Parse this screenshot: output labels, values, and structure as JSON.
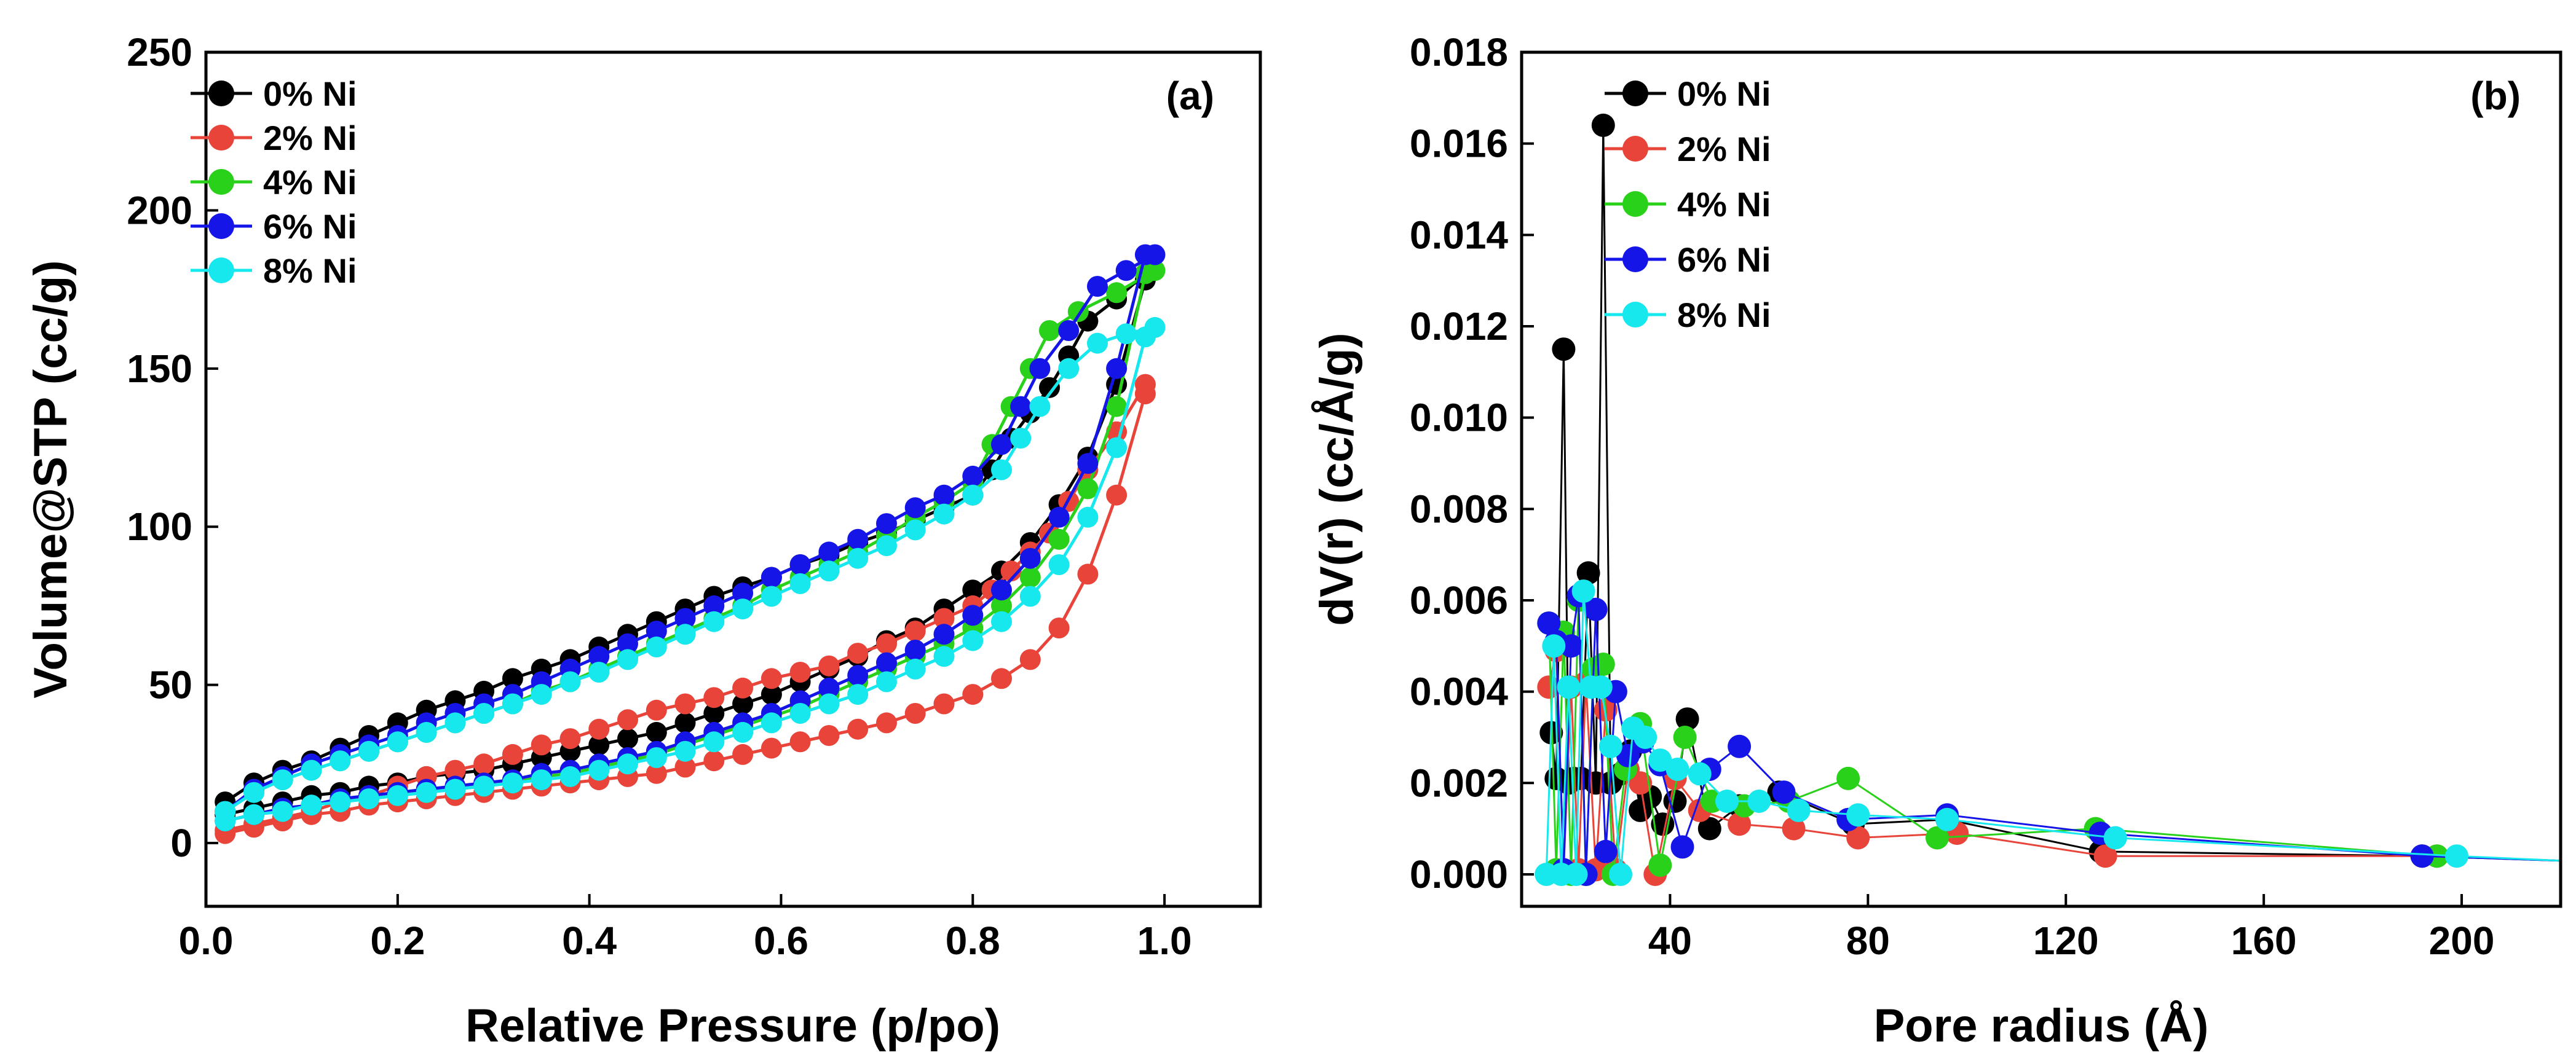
{
  "chart_data": [
    {
      "type": "line",
      "panel_label": "(a)",
      "xlabel": "Relative Pressure (p/po)",
      "ylabel": "Volume@STP (cc/g)",
      "xlim": [
        0.0,
        1.1
      ],
      "ylim": [
        -20,
        250
      ],
      "xticks": [
        0.0,
        0.2,
        0.4,
        0.6,
        0.8,
        1.0
      ],
      "xtick_labels": [
        "0.0",
        "0.2",
        "0.4",
        "0.6",
        "0.8",
        "1.0"
      ],
      "yticks": [
        0,
        50,
        100,
        150,
        200,
        250
      ],
      "ytick_labels": [
        "0",
        "50",
        "100",
        "150",
        "200",
        "250"
      ],
      "legend_position": "top-left",
      "series": [
        {
          "name": "0% Ni",
          "color": "#000000",
          "adsorption_p": [
            0.02,
            0.05,
            0.08,
            0.11,
            0.14,
            0.17,
            0.2,
            0.23,
            0.26,
            0.29,
            0.32,
            0.35,
            0.38,
            0.41,
            0.44,
            0.47,
            0.5,
            0.53,
            0.56,
            0.59,
            0.62,
            0.65,
            0.68,
            0.71,
            0.74,
            0.77,
            0.8,
            0.83,
            0.86,
            0.89,
            0.92,
            0.95,
            0.98
          ],
          "adsorption_v": [
            9,
            11,
            13,
            15,
            16,
            18,
            19,
            21,
            22,
            23,
            25,
            27,
            29,
            31,
            33,
            35,
            38,
            41,
            44,
            47,
            51,
            55,
            59,
            64,
            68,
            74,
            80,
            86,
            95,
            107,
            122,
            145,
            178
          ],
          "desorption_p": [
            0.98,
            0.95,
            0.92,
            0.9,
            0.88,
            0.86,
            0.84,
            0.82,
            0.8,
            0.77,
            0.74,
            0.71,
            0.68,
            0.65,
            0.62,
            0.59,
            0.56,
            0.53,
            0.5,
            0.47,
            0.44,
            0.41,
            0.38,
            0.35,
            0.32,
            0.29,
            0.26,
            0.23,
            0.2,
            0.17,
            0.14,
            0.11,
            0.08,
            0.05,
            0.02
          ],
          "desorption_v": [
            180,
            172,
            165,
            154,
            144,
            136,
            128,
            118,
            110,
            106,
            102,
            98,
            95,
            91,
            88,
            84,
            81,
            78,
            74,
            70,
            66,
            62,
            58,
            55,
            52,
            48,
            45,
            42,
            38,
            34,
            30,
            26,
            23,
            19,
            13
          ]
        },
        {
          "name": "2% Ni",
          "color": "#e8443a",
          "adsorption_p": [
            0.02,
            0.05,
            0.08,
            0.11,
            0.14,
            0.17,
            0.2,
            0.23,
            0.26,
            0.29,
            0.32,
            0.35,
            0.38,
            0.41,
            0.44,
            0.47,
            0.5,
            0.53,
            0.56,
            0.59,
            0.62,
            0.65,
            0.68,
            0.71,
            0.74,
            0.77,
            0.8,
            0.83,
            0.86,
            0.89,
            0.92,
            0.95,
            0.98
          ],
          "adsorption_v": [
            3,
            5,
            7,
            9,
            10,
            12,
            13,
            14,
            15,
            16,
            17,
            18,
            19,
            20,
            21,
            22,
            24,
            26,
            28,
            30,
            32,
            34,
            36,
            38,
            41,
            44,
            47,
            52,
            58,
            68,
            85,
            110,
            142
          ],
          "desorption_p": [
            0.98,
            0.95,
            0.92,
            0.9,
            0.88,
            0.86,
            0.84,
            0.82,
            0.8,
            0.77,
            0.74,
            0.71,
            0.68,
            0.65,
            0.62,
            0.59,
            0.56,
            0.53,
            0.5,
            0.47,
            0.44,
            0.41,
            0.38,
            0.35,
            0.32,
            0.29,
            0.26,
            0.23,
            0.2,
            0.17,
            0.14,
            0.11,
            0.08,
            0.05,
            0.02
          ],
          "desorption_v": [
            145,
            130,
            118,
            108,
            98,
            92,
            86,
            80,
            75,
            71,
            67,
            63,
            60,
            56,
            54,
            52,
            49,
            46,
            44,
            42,
            39,
            36,
            33,
            31,
            28,
            25,
            23,
            21,
            18,
            15,
            13,
            10,
            8,
            6,
            4
          ]
        },
        {
          "name": "4% Ni",
          "color": "#2ad11b",
          "adsorption_p": [
            0.02,
            0.05,
            0.08,
            0.11,
            0.14,
            0.17,
            0.2,
            0.23,
            0.26,
            0.29,
            0.32,
            0.35,
            0.38,
            0.41,
            0.44,
            0.47,
            0.5,
            0.53,
            0.56,
            0.59,
            0.62,
            0.65,
            0.68,
            0.71,
            0.74,
            0.77,
            0.8,
            0.83,
            0.86,
            0.89,
            0.92,
            0.95,
            0.98
          ],
          "adsorption_v": [
            7,
            9,
            11,
            12,
            13,
            14,
            15,
            16,
            17,
            18,
            19,
            21,
            22,
            24,
            26,
            28,
            31,
            34,
            37,
            40,
            43,
            47,
            51,
            55,
            59,
            63,
            68,
            75,
            84,
            96,
            112,
            138,
            180
          ],
          "desorption_p": [
            0.99,
            0.95,
            0.91,
            0.88,
            0.86,
            0.84,
            0.82,
            0.8,
            0.77,
            0.74,
            0.71,
            0.68,
            0.65,
            0.62,
            0.59,
            0.56,
            0.53,
            0.5,
            0.47,
            0.44,
            0.41,
            0.38,
            0.35,
            0.32,
            0.29,
            0.26,
            0.23,
            0.2,
            0.17,
            0.14,
            0.11,
            0.08,
            0.05,
            0.02
          ],
          "desorption_v": [
            181,
            174,
            168,
            162,
            150,
            138,
            126,
            114,
            108,
            103,
            97,
            92,
            88,
            84,
            80,
            75,
            71,
            67,
            63,
            59,
            55,
            51,
            48,
            44,
            41,
            38,
            35,
            32,
            29,
            26,
            23,
            20,
            16,
            10
          ]
        },
        {
          "name": "6% Ni",
          "color": "#1515e8",
          "adsorption_p": [
            0.02,
            0.05,
            0.08,
            0.11,
            0.14,
            0.17,
            0.2,
            0.23,
            0.26,
            0.29,
            0.32,
            0.35,
            0.38,
            0.41,
            0.44,
            0.47,
            0.5,
            0.53,
            0.56,
            0.59,
            0.62,
            0.65,
            0.68,
            0.71,
            0.74,
            0.77,
            0.8,
            0.83,
            0.86,
            0.89,
            0.92,
            0.95,
            0.98
          ],
          "adsorption_v": [
            7,
            9,
            11,
            12,
            14,
            15,
            16,
            17,
            18,
            19,
            20,
            22,
            23,
            25,
            27,
            29,
            32,
            35,
            38,
            41,
            45,
            49,
            53,
            57,
            61,
            66,
            72,
            80,
            90,
            103,
            120,
            150,
            186
          ],
          "desorption_p": [
            0.99,
            0.96,
            0.93,
            0.9,
            0.87,
            0.85,
            0.83,
            0.8,
            0.77,
            0.74,
            0.71,
            0.68,
            0.65,
            0.62,
            0.59,
            0.56,
            0.53,
            0.5,
            0.47,
            0.44,
            0.41,
            0.38,
            0.35,
            0.32,
            0.29,
            0.26,
            0.23,
            0.2,
            0.17,
            0.14,
            0.11,
            0.08,
            0.05,
            0.02
          ],
          "desorption_v": [
            186,
            181,
            176,
            162,
            150,
            138,
            126,
            116,
            110,
            106,
            101,
            96,
            92,
            88,
            84,
            79,
            75,
            71,
            67,
            63,
            59,
            55,
            51,
            47,
            44,
            41,
            38,
            34,
            31,
            28,
            25,
            21,
            17,
            10
          ]
        },
        {
          "name": "8% Ni",
          "color": "#17e8ee",
          "adsorption_p": [
            0.02,
            0.05,
            0.08,
            0.11,
            0.14,
            0.17,
            0.2,
            0.23,
            0.26,
            0.29,
            0.32,
            0.35,
            0.38,
            0.41,
            0.44,
            0.47,
            0.5,
            0.53,
            0.56,
            0.59,
            0.62,
            0.65,
            0.68,
            0.71,
            0.74,
            0.77,
            0.8,
            0.83,
            0.86,
            0.89,
            0.92,
            0.95,
            0.98
          ],
          "adsorption_v": [
            7,
            9,
            10,
            12,
            13,
            14,
            15,
            16,
            17,
            18,
            19,
            20,
            21,
            23,
            25,
            27,
            29,
            32,
            35,
            38,
            41,
            44,
            47,
            51,
            55,
            59,
            64,
            70,
            78,
            88,
            103,
            125,
            160
          ],
          "desorption_p": [
            0.99,
            0.96,
            0.93,
            0.9,
            0.87,
            0.85,
            0.83,
            0.8,
            0.77,
            0.74,
            0.71,
            0.68,
            0.65,
            0.62,
            0.59,
            0.56,
            0.53,
            0.5,
            0.47,
            0.44,
            0.41,
            0.38,
            0.35,
            0.32,
            0.29,
            0.26,
            0.23,
            0.2,
            0.17,
            0.14,
            0.11,
            0.08,
            0.05,
            0.02
          ],
          "desorption_v": [
            163,
            161,
            158,
            150,
            138,
            128,
            118,
            110,
            104,
            99,
            94,
            90,
            86,
            82,
            78,
            74,
            70,
            66,
            62,
            58,
            54,
            51,
            47,
            44,
            41,
            38,
            35,
            32,
            29,
            26,
            23,
            20,
            16,
            10
          ]
        }
      ]
    },
    {
      "type": "line",
      "panel_label": "(b)",
      "xlabel": "Pore radius (Å)",
      "ylabel": "dV(r) (cc/Å/g)",
      "xlim": [
        10,
        220
      ],
      "ylim": [
        -0.0007,
        0.018
      ],
      "xticks": [
        40,
        80,
        120,
        160,
        200
      ],
      "xtick_labels": [
        "40",
        "80",
        "120",
        "160",
        "200"
      ],
      "yticks": [
        0.0,
        0.002,
        0.004,
        0.006,
        0.008,
        0.01,
        0.012,
        0.014,
        0.016,
        0.018
      ],
      "ytick_labels": [
        "0.000",
        "0.002",
        "0.004",
        "0.006",
        "0.008",
        "0.010",
        "0.012",
        "0.014",
        "0.016",
        "0.018"
      ],
      "legend_position": "top-left",
      "series": [
        {
          "name": "0% Ni",
          "color": "#000000",
          "x": [
            16.0,
            17.0,
            18.5,
            19.5,
            20.5,
            22.0,
            23.5,
            25.0,
            26.5,
            28.0,
            30.0,
            32.0,
            34.0,
            36.0,
            38.5,
            41.0,
            43.5,
            48.0,
            54.0,
            62.0,
            77.0,
            96.0,
            127.0,
            192.0,
            220.0
          ],
          "y": [
            0.0031,
            0.0021,
            0.0115,
            0.002,
            0.0021,
            0.0021,
            0.0066,
            0.002,
            0.0164,
            0.002,
            0.0022,
            0.0027,
            0.0014,
            0.0017,
            0.0011,
            0.0016,
            0.0034,
            0.001,
            0.0015,
            0.0018,
            0.0011,
            0.0012,
            0.0005,
            0.0004,
            0.0003
          ]
        },
        {
          "name": "2% Ni",
          "color": "#e8443a",
          "x": [
            15.5,
            17.0,
            18.5,
            20.0,
            21.5,
            23.0,
            25.0,
            27.0,
            29.0,
            31.5,
            34.0,
            37.0,
            41.0,
            46.0,
            54.0,
            65.0,
            78.0,
            98.0,
            128.0,
            195.0,
            220.0
          ],
          "y": [
            0.0041,
            0.0049,
            0.0001,
            0.0041,
            0.0001,
            0.0042,
            0.0001,
            0.0036,
            0.0001,
            0.0023,
            0.002,
            0.0,
            0.0021,
            0.0014,
            0.0011,
            0.001,
            0.0008,
            0.0009,
            0.0004,
            0.0004,
            0.0003
          ]
        },
        {
          "name": "4% Ni",
          "color": "#2ad11b",
          "x": [
            15.5,
            17.0,
            18.5,
            20.0,
            21.5,
            23.0,
            24.5,
            26.5,
            28.5,
            31.0,
            34.0,
            38.0,
            43.0,
            48.5,
            55.0,
            64.0,
            76.0,
            94.0,
            126.0,
            195.0,
            220.0
          ],
          "y": [
            0.0055,
            0.0001,
            0.0053,
            0.0,
            0.006,
            0.0,
            0.0045,
            0.0046,
            0.0,
            0.0023,
            0.0033,
            0.0002,
            0.003,
            0.0016,
            0.0015,
            0.0016,
            0.0021,
            0.0008,
            0.001,
            0.0004,
            0.0003
          ]
        },
        {
          "name": "6% Ni",
          "color": "#1515e8",
          "x": [
            15.5,
            17.0,
            18.5,
            20.0,
            21.5,
            23.0,
            25.0,
            27.0,
            29.0,
            31.5,
            34.5,
            38.0,
            42.5,
            48.0,
            54.0,
            63.0,
            76.0,
            96.0,
            127.0,
            192.0,
            220.0
          ],
          "y": [
            0.0055,
            0.0051,
            0.0001,
            0.005,
            0.0061,
            0.0,
            0.0058,
            0.0005,
            0.004,
            0.0026,
            0.0029,
            0.0024,
            0.0006,
            0.0023,
            0.0028,
            0.0018,
            0.0012,
            0.0013,
            0.0009,
            0.0004,
            0.0003
          ]
        },
        {
          "name": "8% Ni",
          "color": "#17e8ee",
          "x": [
            15.0,
            16.5,
            18.0,
            19.5,
            21.0,
            22.5,
            24.0,
            26.0,
            28.0,
            30.0,
            32.5,
            35.0,
            38.0,
            41.5,
            46.0,
            51.5,
            58.0,
            66.0,
            78.0,
            96.0,
            130.0,
            199.0,
            220.0
          ],
          "y": [
            0.0,
            0.005,
            0.0,
            0.0041,
            0.0,
            0.0062,
            0.0041,
            0.0041,
            0.0028,
            0.0,
            0.0032,
            0.003,
            0.0025,
            0.0023,
            0.0022,
            0.0016,
            0.0016,
            0.0014,
            0.0013,
            0.0012,
            0.0008,
            0.0004,
            0.0003
          ]
        }
      ]
    }
  ]
}
